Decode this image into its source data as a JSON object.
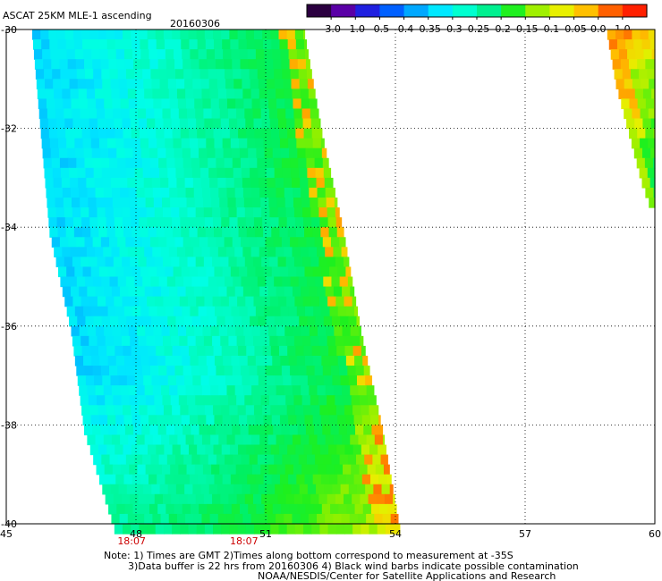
{
  "chart_data": {
    "type": "heatmap",
    "title": "ASCAT 25KM MLE-1 ascending",
    "date": "20160306",
    "xlim": [
      45,
      60
    ],
    "ylim": [
      -40,
      -30
    ],
    "x_ticks": [
      "45",
      "48",
      "51",
      "54",
      "57",
      "60"
    ],
    "x_tick_values": [
      45,
      48,
      51,
      54,
      57,
      60
    ],
    "y_ticks": [
      "-30",
      "-32",
      "-34",
      "-36",
      "-38",
      "-40"
    ],
    "y_tick_values": [
      -30,
      -32,
      -34,
      -36,
      -38,
      -40
    ],
    "grid": true,
    "colorbar": {
      "labels": [
        "-3.0",
        "-1.0",
        "-0.5",
        "-0.4",
        "-0.35",
        "-0.3",
        "-0.25",
        "-0.2",
        "-0.15",
        "-0.1",
        "-0.05",
        "0.0",
        "1.0"
      ],
      "colors": [
        "#2b0040",
        "#5a00a6",
        "#2020e0",
        "#0060ff",
        "#00a8ff",
        "#00e8ff",
        "#00ffd0",
        "#00f090",
        "#20f020",
        "#a0f000",
        "#e8f000",
        "#ffc000",
        "#ff6000",
        "#ff2000"
      ]
    },
    "swaths": [
      {
        "name": "main swath",
        "lon_west": [
          [
            -30,
            45.6
          ],
          [
            -34,
            46.0
          ],
          [
            -36,
            46.5
          ],
          [
            -38,
            46.8
          ],
          [
            -40,
            47.5
          ]
        ],
        "lon_east": [
          [
            -30,
            51.9
          ],
          [
            -32,
            52.3
          ],
          [
            -34,
            52.8
          ],
          [
            -36,
            53.2
          ],
          [
            -38,
            53.7
          ],
          [
            -40,
            54.1
          ]
        ],
        "values_west_to_east": [
          -0.3,
          -0.3,
          -0.28,
          -0.26,
          -0.22,
          -0.18,
          -0.15,
          -0.12
        ]
      },
      {
        "name": "east swath",
        "lon_west": [
          [
            -30,
            58.9
          ],
          [
            -31,
            59.1
          ],
          [
            -32,
            59.4
          ],
          [
            -33,
            59.7
          ],
          [
            -33.5,
            59.9
          ]
        ],
        "lon_east": [
          [
            -30,
            60
          ],
          [
            -33.5,
            60
          ]
        ]
      }
    ],
    "time_labels": [
      {
        "lon": 47.9,
        "text": "18:07"
      },
      {
        "lon": 50.5,
        "text": "18:07"
      }
    ]
  },
  "notes": [
    "Note: 1) Times are GMT 2)Times along bottom correspond to measurement at -35S",
    "3)Data buffer is 22 hrs from 20160306 4) Black wind barbs indicate possible contamination",
    "NOAA/NESDIS/Center for Satellite Applications and Research"
  ]
}
